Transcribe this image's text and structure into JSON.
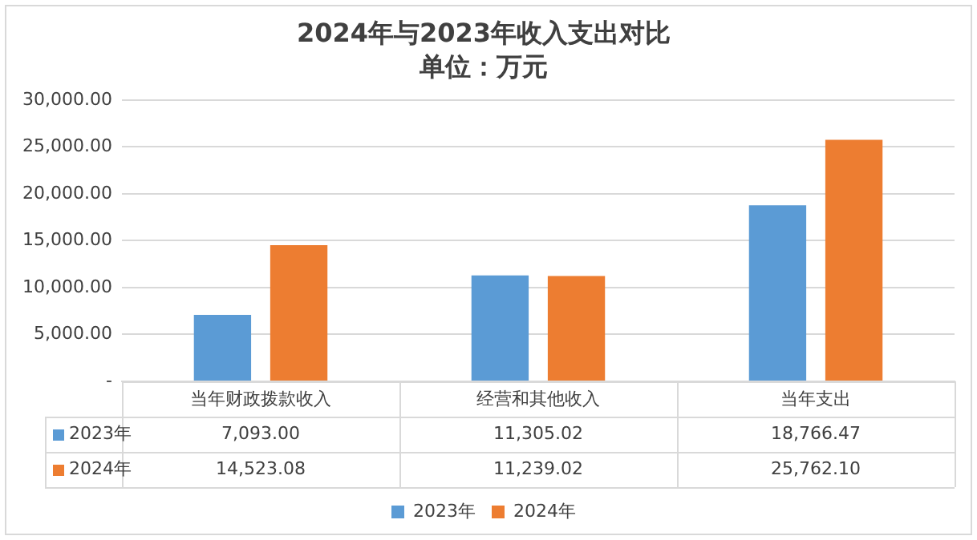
{
  "chart_data": {
    "type": "bar",
    "title": "2024年与2023年收入支出对比",
    "subtitle": "单位：万元",
    "categories": [
      "当年财政拨款收入",
      "经营和其他收入",
      "当年支出"
    ],
    "series": [
      {
        "name": "2023年",
        "color": "#5b9bd5",
        "values": [
          7093.0,
          11305.02,
          18766.47
        ],
        "value_labels": [
          "7,093.00",
          "11,305.02",
          "18,766.47"
        ]
      },
      {
        "name": "2024年",
        "color": "#ed7d31",
        "values": [
          14523.08,
          11239.02,
          25762.1
        ],
        "value_labels": [
          "14,523.08",
          "11,239.02",
          "25,762.10"
        ]
      }
    ],
    "ylim": [
      0,
      30000
    ],
    "yticks": [
      {
        "value": 0,
        "label": "-"
      },
      {
        "value": 5000,
        "label": "5,000.00"
      },
      {
        "value": 10000,
        "label": "10,000.00"
      },
      {
        "value": 15000,
        "label": "15,000.00"
      },
      {
        "value": 20000,
        "label": "20,000.00"
      },
      {
        "value": 25000,
        "label": "25,000.00"
      },
      {
        "value": 30000,
        "label": "30,000.00"
      }
    ],
    "grid": "y",
    "legend": "bottom"
  }
}
